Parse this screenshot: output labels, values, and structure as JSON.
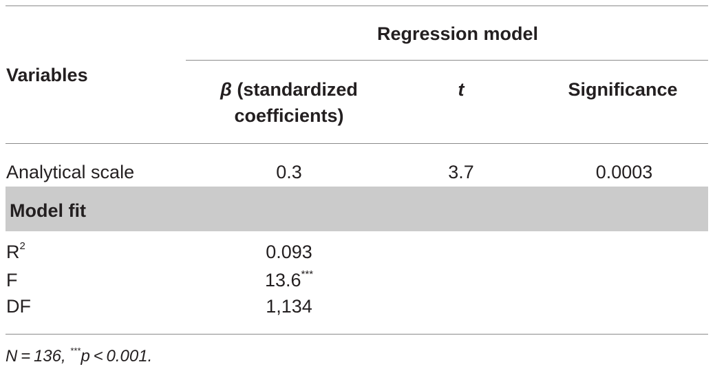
{
  "table": {
    "header": {
      "variables": "Variables",
      "group": "Regression model",
      "beta_symbol": "β",
      "beta_line1": " (standardized",
      "beta_line2": "coefficients)",
      "t": "t",
      "significance": "Significance"
    },
    "row_analytical": {
      "label": "Analytical scale",
      "beta": "0.3",
      "t": "3.7",
      "significance": "0.0003"
    },
    "section_model_fit": "Model fit",
    "fit_rows": {
      "r2_base": "R",
      "r2_sup": "2",
      "r2_value": "0.093",
      "f_label": "F",
      "f_value": "13.6",
      "f_sup": "***",
      "df_label": "DF",
      "df_value": "1,134"
    },
    "footnote": {
      "n_text": "N = 136, ",
      "stars": "***",
      "p_text": "p < 0.001."
    }
  }
}
